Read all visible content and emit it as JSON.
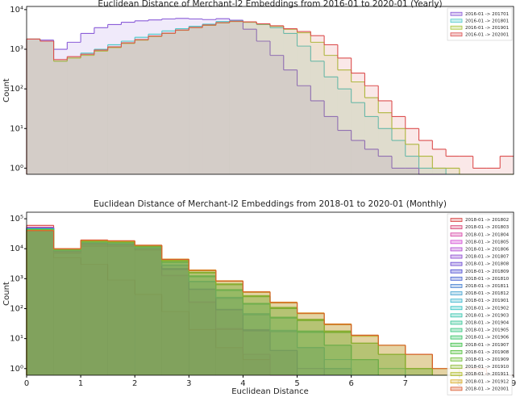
{
  "chart_data": [
    {
      "type": "histogram",
      "title": "Euclidean Distance of Merchant-I2 Embeddings from 2016-01 to 2020-01 (Yearly)",
      "ylabel": "Count",
      "log_scale": true,
      "legend": "upper right",
      "xlim": [
        0,
        9
      ],
      "ylim": [
        0.7,
        12000
      ],
      "yticks": [
        {
          "value": 1,
          "label": "10⁰"
        },
        {
          "value": 10,
          "label": "10¹"
        },
        {
          "value": 100,
          "label": "10²"
        },
        {
          "value": 1000,
          "label": "10³"
        },
        {
          "value": 10000,
          "label": "10⁴"
        }
      ],
      "bins": [
        0,
        0.25,
        0.5,
        0.75,
        1,
        1.25,
        1.5,
        1.75,
        2,
        2.25,
        2.5,
        2.75,
        3,
        3.25,
        3.5,
        3.75,
        4,
        4.25,
        4.5,
        4.75,
        5,
        5.25,
        5.5,
        5.75,
        6,
        6.25,
        6.5,
        6.75,
        7,
        7.25,
        7.5,
        7.75,
        8,
        8.25,
        8.5,
        8.75,
        9
      ],
      "series": [
        {
          "name": "2016-01 -> 201701",
          "color": "#8a5cd8",
          "values": [
            1800,
            1700,
            1000,
            1500,
            2500,
            3500,
            4200,
            4800,
            5200,
            5500,
            5800,
            6000,
            5800,
            5600,
            5900,
            5400,
            3200,
            1600,
            700,
            300,
            120,
            50,
            20,
            9,
            5,
            3,
            2,
            1,
            1,
            0,
            0,
            0,
            0,
            0,
            0,
            0
          ]
        },
        {
          "name": "2016-01 -> 201801",
          "color": "#4fc9c9",
          "values": [
            1800,
            1600,
            500,
            600,
            800,
            1000,
            1300,
            1600,
            2000,
            2400,
            2900,
            3300,
            3800,
            4300,
            5000,
            5200,
            4800,
            4200,
            3500,
            2500,
            1200,
            500,
            200,
            100,
            45,
            20,
            10,
            5,
            2,
            1,
            1,
            0,
            0,
            0,
            0,
            0
          ]
        },
        {
          "name": "2016-01 -> 201901",
          "color": "#a8c63c",
          "values": [
            1800,
            1600,
            500,
            600,
            700,
            900,
            1100,
            1400,
            1700,
            2100,
            2500,
            3000,
            3500,
            4000,
            4600,
            5000,
            4800,
            4300,
            3800,
            3200,
            2600,
            1500,
            700,
            300,
            150,
            60,
            25,
            10,
            4,
            2,
            1,
            1,
            0,
            0,
            0,
            0
          ]
        },
        {
          "name": "2016-01 -> 202001",
          "color": "#dc5050",
          "values": [
            1800,
            1600,
            550,
            650,
            750,
            950,
            1150,
            1450,
            1750,
            2150,
            2550,
            3050,
            3550,
            4100,
            4700,
            5100,
            4900,
            4400,
            3900,
            3300,
            2800,
            2200,
            1300,
            600,
            250,
            120,
            50,
            20,
            10,
            5,
            3,
            2,
            2,
            1,
            1,
            2
          ]
        }
      ]
    },
    {
      "type": "histogram",
      "title": "Euclidean Distance of Merchant-I2 Embeddings from 2018-01 to 2020-01 (Monthly)",
      "ylabel": "Count",
      "xlabel": "Euclidean Distance",
      "log_scale": true,
      "legend": "upper right",
      "xlim": [
        0,
        9
      ],
      "xticks": [
        0,
        1,
        2,
        3,
        4,
        5,
        6,
        7,
        8,
        9
      ],
      "ylim": [
        0.6,
        165000
      ],
      "yticks": [
        {
          "value": 1,
          "label": "10⁰"
        },
        {
          "value": 10,
          "label": "10¹"
        },
        {
          "value": 100,
          "label": "10²"
        },
        {
          "value": 1000,
          "label": "10³"
        },
        {
          "value": 10000,
          "label": "10⁴"
        },
        {
          "value": 100000,
          "label": "10⁵"
        }
      ],
      "bins": [
        0,
        0.5,
        1,
        1.5,
        2,
        2.5,
        3,
        3.5,
        4,
        4.5,
        5,
        5.5,
        6,
        6.5,
        7,
        7.5,
        8,
        8.5,
        9
      ],
      "series": [
        {
          "name": "2018-01 -> 201802",
          "color": "hsl(0,65%,55%)",
          "values": [
            60000,
            5000,
            3000,
            900,
            300,
            80,
            20,
            5,
            2,
            0,
            0,
            0,
            0,
            0,
            0,
            0,
            0,
            0
          ]
        },
        {
          "name": "2018-01 -> 201803",
          "color": "hsl(340,65%,55%)",
          "values": [
            52000,
            7000,
            12000,
            12000,
            9000,
            1300,
            165,
            21,
            3,
            0,
            0,
            0,
            0,
            0,
            0,
            0,
            0,
            0
          ]
        },
        {
          "name": "2018-01 -> 201804",
          "color": "hsl(320,65%,55%)",
          "values": [
            51000,
            7500,
            13000,
            12500,
            9500,
            1250,
            160,
            20,
            3,
            0,
            0,
            0,
            0,
            0,
            0,
            0,
            0,
            0
          ]
        },
        {
          "name": "2018-01 -> 201805",
          "color": "hsl(300,60%,55%)",
          "values": [
            50000,
            7800,
            14000,
            13000,
            10000,
            1300,
            170,
            22,
            3,
            0,
            0,
            0,
            0,
            0,
            0,
            0,
            0,
            0
          ]
        },
        {
          "name": "2018-01 -> 201806",
          "color": "hsl(285,60%,55%)",
          "values": [
            50000,
            8000,
            14500,
            13500,
            10000,
            2100,
            440,
            93,
            19,
            4,
            0,
            0,
            0,
            0,
            0,
            0,
            0,
            0
          ]
        },
        {
          "name": "2018-01 -> 201807",
          "color": "hsl(270,60%,55%)",
          "values": [
            49000,
            8200,
            15000,
            14000,
            10000,
            2000,
            430,
            90,
            18,
            4,
            0,
            0,
            0,
            0,
            0,
            0,
            0,
            0
          ]
        },
        {
          "name": "2018-01 -> 201808",
          "color": "hsl(255,60%,55%)",
          "values": [
            49000,
            8400,
            15000,
            14000,
            10500,
            2200,
            450,
            95,
            20,
            4,
            1,
            0,
            0,
            0,
            0,
            0,
            0,
            0
          ]
        },
        {
          "name": "2018-01 -> 201809",
          "color": "hsl(240,60%,55%)",
          "values": [
            48000,
            8500,
            15500,
            14500,
            10500,
            2100,
            440,
            93,
            19,
            4,
            0,
            0,
            0,
            0,
            0,
            0,
            0,
            0
          ]
        },
        {
          "name": "2018-01 -> 201810",
          "color": "hsl(228,60%,55%)",
          "values": [
            48000,
            8600,
            15500,
            14500,
            10000,
            2800,
            800,
            230,
            65,
            18,
            5,
            1,
            0,
            0,
            0,
            0,
            0,
            0
          ]
        },
        {
          "name": "2018-01 -> 201811",
          "color": "hsl(215,60%,55%)",
          "values": [
            47000,
            8700,
            16000,
            15000,
            10500,
            2700,
            780,
            220,
            62,
            17,
            5,
            1,
            0,
            0,
            0,
            0,
            0,
            0
          ]
        },
        {
          "name": "2018-01 -> 201812",
          "color": "hsl(200,60%,55%)",
          "values": [
            47000,
            8800,
            16000,
            15000,
            11000,
            2900,
            820,
            240,
            68,
            19,
            5,
            1,
            0,
            0,
            0,
            0,
            0,
            0
          ]
        },
        {
          "name": "2018-01 -> 201901",
          "color": "hsl(190,60%,52%)",
          "values": [
            46000,
            8900,
            16500,
            15500,
            11000,
            2800,
            800,
            230,
            65,
            18,
            5,
            2,
            0,
            0,
            0,
            0,
            0,
            0
          ]
        },
        {
          "name": "2018-01 -> 201902",
          "color": "hsl(180,60%,48%)",
          "values": [
            46000,
            9000,
            16500,
            15500,
            11000,
            3500,
            1200,
            420,
            145,
            50,
            17,
            6,
            2,
            0,
            0,
            0,
            0,
            0
          ]
        },
        {
          "name": "2018-01 -> 201903",
          "color": "hsl(170,60%,48%)",
          "values": [
            45000,
            9100,
            17000,
            16000,
            11500,
            3400,
            1150,
            400,
            140,
            48,
            16,
            6,
            2,
            0,
            0,
            0,
            0,
            0
          ]
        },
        {
          "name": "2018-01 -> 201904",
          "color": "hsl(160,60%,48%)",
          "values": [
            45000,
            9200,
            17000,
            16000,
            11500,
            3600,
            1250,
            430,
            150,
            52,
            18,
            6,
            2,
            1,
            0,
            0,
            0,
            0
          ]
        },
        {
          "name": "2018-01 -> 201905",
          "color": "hsl(150,60%,48%)",
          "values": [
            44000,
            9300,
            17500,
            16500,
            12000,
            3500,
            1200,
            420,
            145,
            50,
            17,
            6,
            2,
            0,
            0,
            0,
            0,
            0
          ]
        },
        {
          "name": "2018-01 -> 201906",
          "color": "hsl(140,60%,48%)",
          "values": [
            44000,
            9400,
            17500,
            16500,
            12000,
            4000,
            1600,
            650,
            260,
            105,
            42,
            17,
            7,
            3,
            1,
            0,
            0,
            0
          ]
        },
        {
          "name": "2018-01 -> 201907",
          "color": "hsl(125,55%,48%)",
          "values": [
            43000,
            9500,
            18000,
            17000,
            12000,
            3900,
            1550,
            630,
            250,
            100,
            40,
            16,
            7,
            3,
            1,
            0,
            0,
            0
          ]
        },
        {
          "name": "2018-01 -> 201908",
          "color": "hsl(110,55%,48%)",
          "values": [
            43000,
            9600,
            18000,
            17000,
            12500,
            4100,
            1650,
            670,
            270,
            110,
            44,
            18,
            7,
            3,
            1,
            0,
            0,
            0
          ]
        },
        {
          "name": "2018-01 -> 201909",
          "color": "hsl(95,55%,48%)",
          "values": [
            42000,
            9700,
            18500,
            17500,
            12500,
            4000,
            1600,
            650,
            260,
            105,
            42,
            17,
            7,
            3,
            1,
            0,
            0,
            0
          ]
        },
        {
          "name": "2018-01 -> 201910",
          "color": "hsl(80,60%,45%)",
          "values": [
            42000,
            9800,
            18500,
            17500,
            12500,
            4400,
            1900,
            830,
            360,
            160,
            70,
            30,
            13,
            6,
            3,
            1,
            0,
            0
          ]
        },
        {
          "name": "2018-01 -> 201911",
          "color": "hsl(65,65%,45%)",
          "values": [
            41000,
            9900,
            19000,
            18000,
            13000,
            4300,
            1850,
            810,
            350,
            155,
            68,
            29,
            12,
            6,
            3,
            1,
            0,
            0
          ]
        },
        {
          "name": "2018-01 -> 201912",
          "color": "hsl(45,70%,50%)",
          "values": [
            41000,
            10000,
            19000,
            18000,
            13000,
            4500,
            1950,
            850,
            370,
            165,
            72,
            31,
            13,
            6,
            3,
            1,
            0,
            0
          ]
        },
        {
          "name": "2018-01 -> 202001",
          "color": "hsl(15,70%,52%)",
          "values": [
            40000,
            10000,
            19500,
            18500,
            13000,
            4400,
            1900,
            830,
            360,
            160,
            70,
            30,
            13,
            6,
            3,
            1,
            1,
            0
          ]
        }
      ]
    }
  ]
}
